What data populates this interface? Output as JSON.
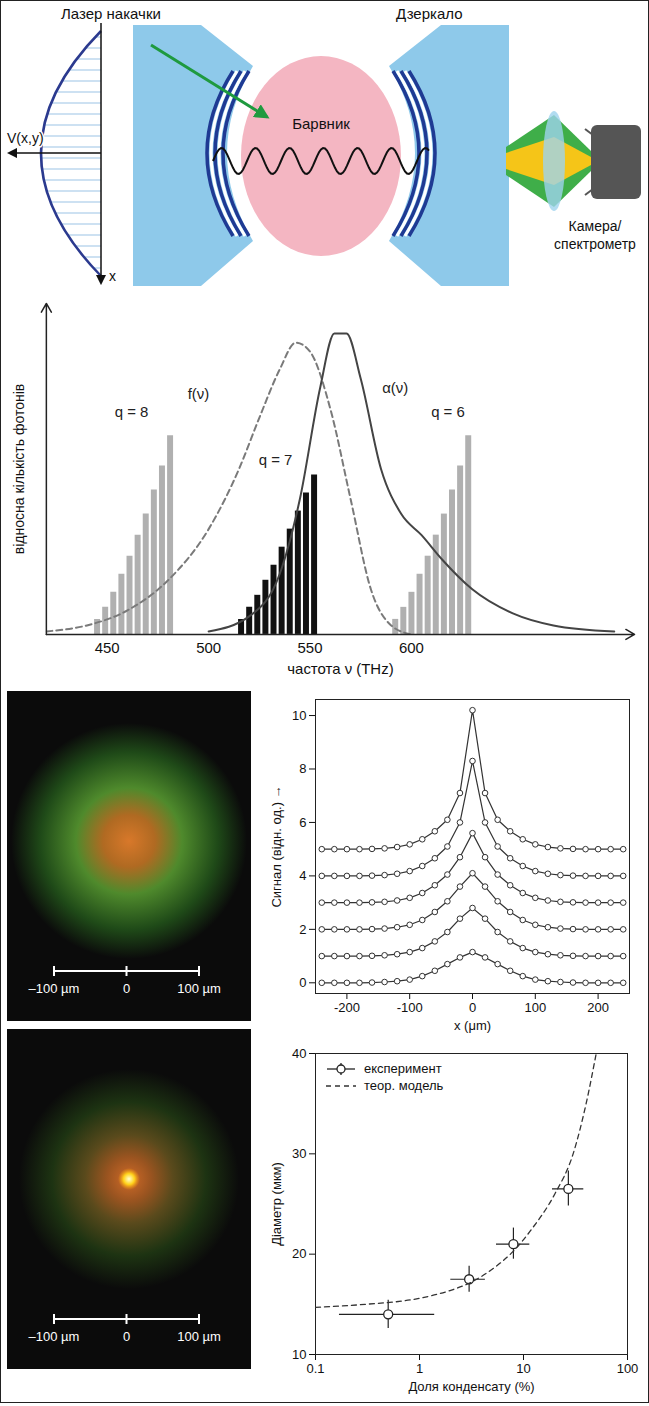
{
  "diagram": {
    "pump_laser": "Лазер накачки",
    "mirror": "Дзеркало",
    "dye": "Барвник",
    "camera": "Камера/спектрометр",
    "potential": "V(x,y)",
    "axis": "x"
  },
  "chart_data": [
    {
      "type": "bar",
      "x_label": "частота ν (THz)",
      "y_label": "відносна кількість фотонів",
      "xlim": [
        420,
        710
      ],
      "xticks": [
        450,
        500,
        550,
        600
      ],
      "ylim": [
        0,
        1.1
      ],
      "tick_labels": "x",
      "series": [
        {
          "name": "q = 8",
          "type": "bar",
          "color": "#b0b0b0",
          "label_at": [
            462,
            0.74
          ],
          "x": [
            445,
            449,
            453,
            457,
            461,
            465,
            469,
            473,
            477,
            481
          ],
          "values": [
            0.05,
            0.09,
            0.14,
            0.2,
            0.26,
            0.33,
            0.4,
            0.48,
            0.56,
            0.66
          ]
        },
        {
          "name": "q = 7",
          "type": "bar",
          "color": "#111111",
          "label_at": [
            533,
            0.58
          ],
          "x": [
            516,
            520,
            524,
            528,
            532,
            536,
            540,
            544,
            548,
            552
          ],
          "values": [
            0.05,
            0.09,
            0.13,
            0.18,
            0.23,
            0.29,
            0.35,
            0.41,
            0.47,
            0.53
          ]
        },
        {
          "name": "q = 6",
          "type": "bar",
          "color": "#b0b0b0",
          "label_at": [
            618,
            0.74
          ],
          "x": [
            592,
            596,
            600,
            604,
            608,
            612,
            616,
            620,
            624,
            628
          ],
          "values": [
            0.05,
            0.09,
            0.14,
            0.2,
            0.26,
            0.33,
            0.4,
            0.48,
            0.56,
            0.66
          ]
        },
        {
          "name": "f(ν)",
          "type": "line",
          "line_style": "dashed",
          "color": "#7a7a7a",
          "label_at": [
            495,
            0.8
          ],
          "x": [
            420,
            440,
            460,
            480,
            500,
            515,
            525,
            535,
            543,
            550,
            560,
            570,
            580,
            590,
            600
          ],
          "values": [
            0.01,
            0.03,
            0.08,
            0.18,
            0.35,
            0.55,
            0.72,
            0.88,
            0.97,
            0.94,
            0.75,
            0.45,
            0.15,
            0.03,
            0
          ]
        },
        {
          "name": "α(ν)",
          "type": "line",
          "line_style": "solid",
          "color": "#444444",
          "label_at": [
            592,
            0.82
          ],
          "x": [
            500,
            520,
            535,
            545,
            555,
            562,
            568,
            575,
            585,
            595,
            605,
            615,
            630,
            650,
            670,
            700
          ],
          "values": [
            0.01,
            0.06,
            0.2,
            0.45,
            0.82,
            1.0,
            1.0,
            0.85,
            0.55,
            0.4,
            0.33,
            0.25,
            0.15,
            0.07,
            0.03,
            0.01
          ]
        }
      ]
    },
    {
      "type": "line",
      "x_label": "x (μm)",
      "y_label": "Сигнал (відн. од.) →",
      "xlim": [
        -250,
        250
      ],
      "xticks": [
        -200,
        -100,
        0,
        100,
        200
      ],
      "ylim": [
        -0.4,
        10.6
      ],
      "yticks": [
        0,
        2,
        4,
        6,
        8,
        10
      ],
      "marker": "circle",
      "color": "#333333",
      "x": [
        -240,
        -220,
        -200,
        -180,
        -160,
        -140,
        -120,
        -100,
        -80,
        -60,
        -40,
        -20,
        0,
        20,
        40,
        60,
        80,
        100,
        120,
        140,
        160,
        180,
        200,
        220,
        240
      ],
      "series": [
        {
          "values": [
            0,
            0,
            0,
            0,
            0.01,
            0.03,
            0.06,
            0.12,
            0.25,
            0.45,
            0.7,
            0.95,
            1.15,
            0.95,
            0.7,
            0.45,
            0.25,
            0.12,
            0.06,
            0.03,
            0.01,
            0,
            0,
            0,
            0
          ]
        },
        {
          "values": [
            1,
            1,
            1,
            1,
            1.01,
            1.03,
            1.07,
            1.15,
            1.3,
            1.55,
            1.9,
            2.4,
            2.8,
            2.4,
            1.9,
            1.55,
            1.3,
            1.15,
            1.07,
            1.03,
            1.01,
            1,
            1,
            1,
            1
          ]
        },
        {
          "values": [
            2,
            2,
            2,
            2,
            2.01,
            2.03,
            2.08,
            2.17,
            2.35,
            2.65,
            3.05,
            3.6,
            4.1,
            3.6,
            3.05,
            2.65,
            2.35,
            2.17,
            2.08,
            2.03,
            2.01,
            2,
            2,
            2,
            2
          ]
        },
        {
          "values": [
            3,
            3,
            3,
            3,
            3.01,
            3.03,
            3.08,
            3.18,
            3.36,
            3.65,
            4.05,
            4.7,
            5.6,
            4.7,
            4.05,
            3.65,
            3.36,
            3.18,
            3.08,
            3.03,
            3.01,
            3,
            3,
            3,
            3
          ]
        },
        {
          "values": [
            4,
            4,
            4,
            4,
            4.01,
            4.03,
            4.08,
            4.18,
            4.37,
            4.66,
            5.1,
            6.0,
            8.3,
            6.0,
            5.1,
            4.66,
            4.37,
            4.18,
            4.08,
            4.03,
            4.01,
            4,
            4,
            4,
            4
          ]
        },
        {
          "values": [
            5,
            5,
            5,
            5,
            5.01,
            5.03,
            5.08,
            5.18,
            5.37,
            5.67,
            6.1,
            7.1,
            10.2,
            7.1,
            6.1,
            5.67,
            5.37,
            5.18,
            5.08,
            5.03,
            5.01,
            5,
            5,
            5,
            5
          ]
        }
      ]
    },
    {
      "type": "scatter",
      "x_label": "Доля конденсату (%)",
      "y_label": "Діаметр (мкм)",
      "log": "x",
      "xlim": [
        0.1,
        100
      ],
      "xticks": [
        0.1,
        1,
        10,
        100
      ],
      "ylim": [
        10,
        40
      ],
      "yticks": [
        10,
        20,
        30,
        40
      ],
      "legend": "top-left",
      "series": [
        {
          "name": "експеримент",
          "type": "scatter",
          "marker": "circle",
          "color": "#222222",
          "x": [
            0.5,
            3,
            8,
            27
          ],
          "values": [
            14,
            17.5,
            21,
            26.5
          ],
          "x_low": [
            0.17,
            2,
            5.5,
            19
          ],
          "x_high": [
            1.4,
            4.3,
            11.5,
            38
          ],
          "y_low": [
            12.6,
            16.2,
            19.5,
            24.8
          ],
          "y_high": [
            15.4,
            18.8,
            22.6,
            28.3
          ]
        },
        {
          "name": "теор. модель",
          "type": "line",
          "line_style": "dashed",
          "color": "#333333",
          "x": [
            0.1,
            0.3,
            1,
            2,
            3,
            5,
            8,
            12,
            20,
            30,
            40,
            50
          ],
          "values": [
            14.7,
            15,
            15.6,
            16.4,
            17.1,
            18.5,
            20.3,
            22.5,
            26,
            30,
            35,
            40
          ]
        }
      ]
    }
  ],
  "images": [
    {
      "scale_bar": [
        {
          "value": -100,
          "label": "–100 µm"
        },
        {
          "value": 0,
          "label": "0"
        },
        {
          "value": 100,
          "label": "100 µm"
        }
      ]
    },
    {
      "scale_bar": [
        {
          "value": -100,
          "label": "–100 µm"
        },
        {
          "value": 0,
          "label": "0"
        },
        {
          "value": 100,
          "label": "100 µm"
        }
      ]
    }
  ]
}
